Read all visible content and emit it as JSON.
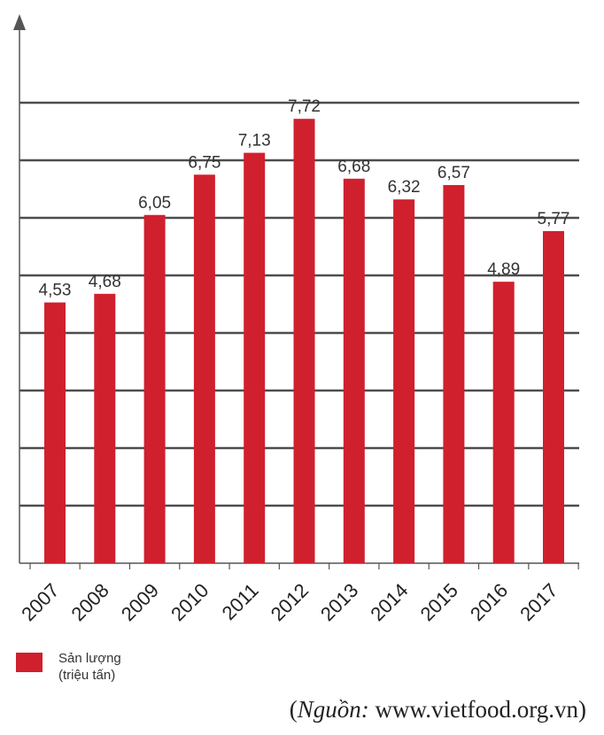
{
  "chart_data": {
    "type": "bar",
    "categories": [
      "2007",
      "2008",
      "2009",
      "2010",
      "2011",
      "2012",
      "2013",
      "2014",
      "2015",
      "2016",
      "2017"
    ],
    "values": [
      4.53,
      4.68,
      6.05,
      6.75,
      7.13,
      7.72,
      6.68,
      6.32,
      6.57,
      4.89,
      5.77
    ],
    "value_labels": [
      "4,53",
      "4,68",
      "6,05",
      "6,75",
      "7,13",
      "7,72",
      "6,68",
      "6,32",
      "6,57",
      "4,89",
      "5,77"
    ],
    "title": "",
    "xlabel": "",
    "ylabel": "",
    "ylim": [
      0,
      9
    ],
    "grid": true,
    "legend_position": "bottom-left",
    "series": [
      {
        "name": "Sản lượng (triệu tấn)",
        "values": [
          4.53,
          4.68,
          6.05,
          6.75,
          7.13,
          7.72,
          6.68,
          6.32,
          6.57,
          4.89,
          5.77
        ]
      }
    ]
  },
  "legend": {
    "line1": "Sản lượng",
    "line2": "(triệu tấn)"
  },
  "source": {
    "prefix": "(",
    "label": "Nguồn:",
    "text": " www.vietfood.org.vn)"
  },
  "colors": {
    "bar": "#d0202e",
    "grid": "#4d4d4d",
    "axis": "#555555"
  }
}
